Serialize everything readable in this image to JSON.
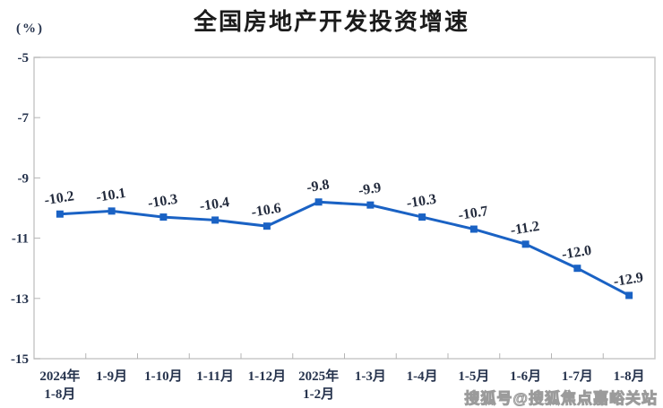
{
  "chart_data": {
    "type": "line",
    "title": "全国房地产开发投资增速",
    "unit_label": "(%)",
    "categories": [
      [
        "2024年",
        "1-8月"
      ],
      [
        "1-9月"
      ],
      [
        "1-10月"
      ],
      [
        "1-11月"
      ],
      [
        "1-12月"
      ],
      [
        "2025年",
        "1-2月"
      ],
      [
        "1-3月"
      ],
      [
        "1-4月"
      ],
      [
        "1-5月"
      ],
      [
        "1-6月"
      ],
      [
        "1-7月"
      ],
      [
        "1-8月"
      ]
    ],
    "values": [
      -10.2,
      -10.1,
      -10.3,
      -10.4,
      -10.6,
      -9.8,
      -9.9,
      -10.3,
      -10.7,
      -11.2,
      -12.0,
      -12.9
    ],
    "data_labels": [
      "-10.2",
      "-10.1",
      "-10.3",
      "-10.4",
      "-10.6",
      "-9.8",
      "-9.9",
      "-10.3",
      "-10.7",
      "-11.2",
      "-12.0",
      "-12.9"
    ],
    "y_ticks": [
      -5,
      -7,
      -9,
      -11,
      -13,
      -15
    ],
    "ylim": [
      -15,
      -5
    ],
    "xlabel": "",
    "ylabel": "(%)",
    "grid": false,
    "legend_position": "none",
    "marker": "square",
    "colors": {
      "line": "#1A62C4",
      "axis": "#c9c9c9",
      "tick_mark": "#b5b5b5",
      "tick_text": "#26334d",
      "data_label_text": "#232b3d",
      "title_text": "#1b1b1b",
      "watermark": "#9b9b9b"
    }
  },
  "watermark": {
    "text": "搜狐号@搜狐焦点嘉峪关站"
  }
}
